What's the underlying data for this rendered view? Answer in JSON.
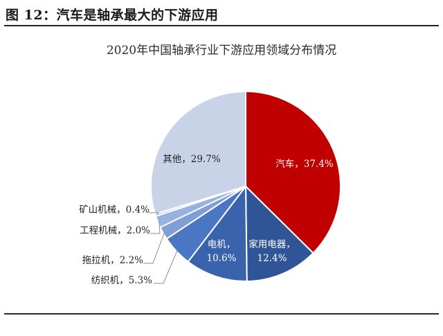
{
  "figure": {
    "title": "图 12：汽车是轴承最大的下游应用"
  },
  "chart_data": {
    "type": "pie",
    "title": "2020年中国轴承行业下游应用领域分布情况",
    "labels": [
      "汽车",
      "家用电器",
      "电机",
      "纺织机",
      "拖拉机",
      "工程机械",
      "矿山机械",
      "其他"
    ],
    "values": [
      37.4,
      12.4,
      10.6,
      5.3,
      2.2,
      2.0,
      0.4,
      29.7
    ],
    "value_unit": "%",
    "data_labels": [
      "汽车，37.4%",
      "家用电器，12.4%",
      "电机，10.6%",
      "纺织机，5.3%",
      "拖拉机，2.2%",
      "工程机械，2.0%",
      "矿山机械，0.4%",
      "其他，29.7%"
    ],
    "colors": [
      "#c00000",
      "#2f5597",
      "#3a63ad",
      "#4a76c4",
      "#7f9fd7",
      "#96b2e1",
      "#b7c9ea",
      "#c9d3e8"
    ],
    "start": "12 o'clock",
    "direction": "clockwise",
    "legend": "none"
  }
}
